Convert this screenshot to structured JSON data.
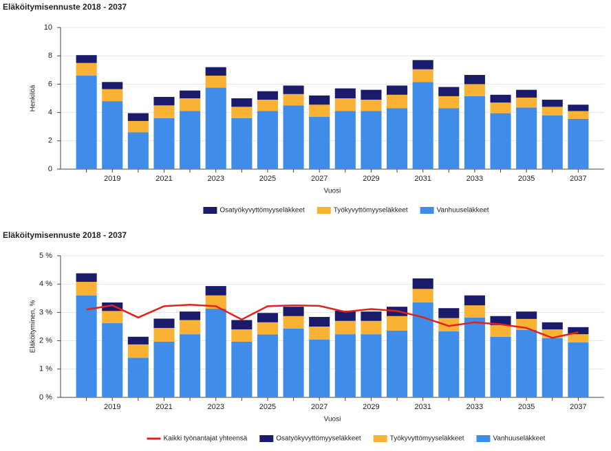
{
  "chart_data": [
    {
      "type": "bar",
      "stacked": true,
      "title": "Eläköitymisennuste 2018 - 2037",
      "xlabel": "Vuosi",
      "ylabel": "Henkilöä",
      "categories": [
        null,
        "2019",
        null,
        "2021",
        null,
        "2023",
        null,
        "2025",
        null,
        "2027",
        null,
        "2029",
        null,
        "2031",
        null,
        "2033",
        null,
        "2035",
        null,
        "2037"
      ],
      "series": [
        {
          "name": "Osatyökyvyttömyyseläkkeet",
          "color": "#1b1b6b",
          "values": [
            0.55,
            0.5,
            0.55,
            0.6,
            0.55,
            0.6,
            0.6,
            0.6,
            0.6,
            0.65,
            0.7,
            0.7,
            0.65,
            0.65,
            0.65,
            0.65,
            0.55,
            0.55,
            0.5,
            0.45
          ]
        },
        {
          "name": "Työkyvyttömyyseläkkeet",
          "color": "#f9b233",
          "values": [
            0.9,
            0.85,
            0.8,
            0.9,
            0.9,
            0.85,
            0.8,
            0.8,
            0.8,
            0.85,
            0.9,
            0.8,
            0.95,
            0.9,
            0.85,
            0.85,
            0.75,
            0.7,
            0.6,
            0.55
          ]
        },
        {
          "name": "Vanhuuseläkkeet",
          "color": "#3f8de8",
          "values": [
            6.6,
            4.8,
            2.6,
            3.6,
            4.1,
            5.75,
            3.6,
            4.1,
            4.5,
            3.7,
            4.1,
            4.1,
            4.3,
            6.15,
            4.3,
            5.15,
            3.95,
            4.35,
            3.8,
            3.55
          ]
        }
      ],
      "ylim": [
        0,
        10
      ],
      "yticks": [
        0,
        2,
        4,
        6,
        8,
        10
      ],
      "grid": true
    },
    {
      "type": "bar",
      "stacked": true,
      "title": "Eläköitymisennuste 2018 - 2037",
      "xlabel": "Vuosi",
      "ylabel": "Eläköityminen, %",
      "categories": [
        null,
        "2019",
        null,
        "2021",
        null,
        "2023",
        null,
        "2025",
        null,
        "2027",
        null,
        "2029",
        null,
        "2031",
        null,
        "2033",
        null,
        "2035",
        null,
        "2037"
      ],
      "series": [
        {
          "name": "Kaikki työnantajat yhteensä",
          "type": "line",
          "color": "#e3211c",
          "values": [
            3.1,
            3.25,
            2.82,
            3.22,
            3.27,
            3.22,
            2.75,
            3.22,
            3.25,
            3.23,
            3.02,
            3.12,
            3.05,
            2.83,
            2.52,
            2.65,
            2.58,
            2.45,
            2.1,
            2.3
          ]
        },
        {
          "name": "Osatyökyvyttömyyseläkkeet",
          "color": "#1b1b6b",
          "values": [
            0.3,
            0.3,
            0.27,
            0.33,
            0.3,
            0.33,
            0.33,
            0.33,
            0.33,
            0.34,
            0.36,
            0.33,
            0.33,
            0.37,
            0.35,
            0.35,
            0.32,
            0.26,
            0.25,
            0.25
          ]
        },
        {
          "name": "Työkyvyttömyyseläkkeet",
          "color": "#f9b233",
          "values": [
            0.48,
            0.43,
            0.47,
            0.48,
            0.5,
            0.47,
            0.43,
            0.43,
            0.44,
            0.46,
            0.47,
            0.47,
            0.51,
            0.48,
            0.47,
            0.43,
            0.41,
            0.39,
            0.31,
            0.29
          ]
        },
        {
          "name": "Vanhuuseläkkeet",
          "color": "#3f8de8",
          "values": [
            3.6,
            2.62,
            1.4,
            1.97,
            2.23,
            3.13,
            1.97,
            2.22,
            2.43,
            2.04,
            2.23,
            2.23,
            2.36,
            3.35,
            2.33,
            2.82,
            2.14,
            2.38,
            2.09,
            1.94
          ]
        }
      ],
      "ylim": [
        0,
        5
      ],
      "yticks": [
        {
          "value": 0,
          "label": "0 %"
        },
        {
          "value": 1,
          "label": "1 %"
        },
        {
          "value": 2,
          "label": "2 %"
        },
        {
          "value": 3,
          "label": "3 %"
        },
        {
          "value": 4,
          "label": "4 %"
        },
        {
          "value": 5,
          "label": "5 %"
        }
      ],
      "grid": true
    }
  ]
}
